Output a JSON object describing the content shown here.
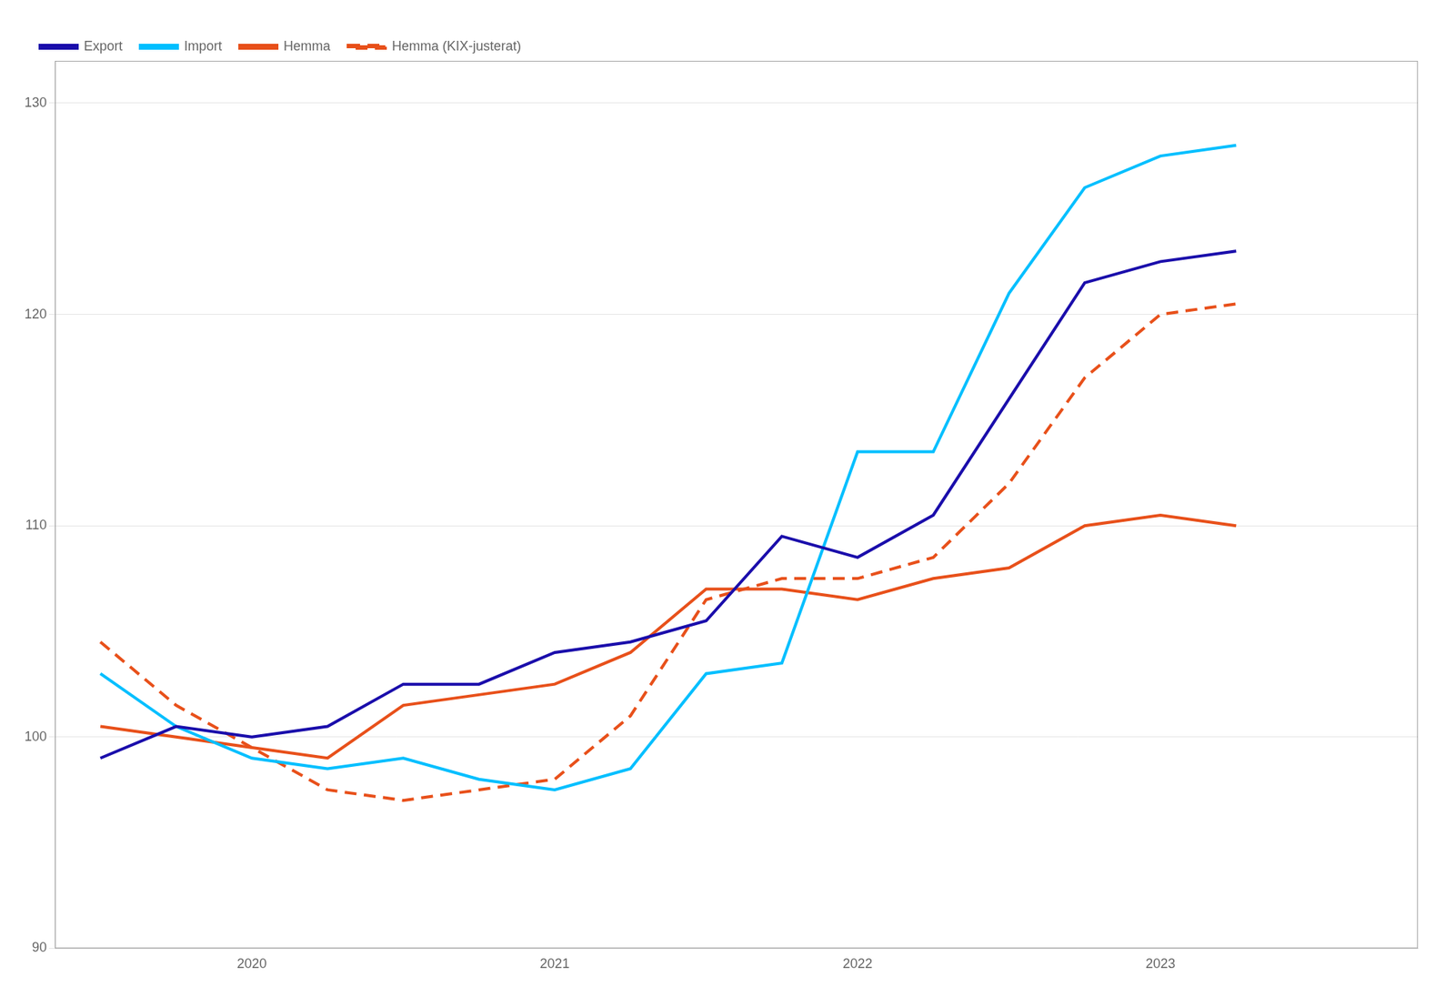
{
  "chart_data": {
    "type": "line",
    "x": [
      2019.5,
      2019.75,
      2020,
      2020.25,
      2020.5,
      2020.75,
      2021,
      2021.25,
      2021.5,
      2021.75,
      2022,
      2022.25,
      2022.5,
      2022.75,
      2023,
      2023.25
    ],
    "series": [
      {
        "name": "Export",
        "color": "#1a0dab",
        "line_style": "solid",
        "values": [
          99.0,
          100.5,
          100.0,
          100.5,
          102.5,
          102.5,
          104.0,
          104.5,
          105.5,
          109.5,
          108.5,
          110.5,
          116.0,
          121.5,
          122.5,
          123.0
        ]
      },
      {
        "name": "Import",
        "color": "#00bfff",
        "line_style": "solid",
        "values": [
          103.0,
          100.5,
          99.0,
          98.5,
          99.0,
          98.0,
          97.5,
          98.5,
          103.0,
          103.5,
          113.5,
          113.5,
          121.0,
          126.0,
          127.5,
          128.0
        ]
      },
      {
        "name": "Hemma",
        "color": "#e8501a",
        "line_style": "solid",
        "values": [
          100.5,
          100.0,
          99.5,
          99.0,
          101.5,
          102.0,
          102.5,
          104.0,
          107.0,
          107.0,
          106.5,
          107.5,
          108.0,
          110.0,
          110.5,
          110.0
        ]
      },
      {
        "name": "Hemma (KIX-justerat)",
        "color": "#e8501a",
        "line_style": "dashed",
        "values": [
          104.5,
          101.5,
          99.5,
          97.5,
          97.0,
          97.5,
          98.0,
          101.0,
          106.5,
          107.5,
          107.5,
          108.5,
          112.0,
          117.0,
          120.0,
          120.5
        ]
      }
    ],
    "xlim": [
      2019.35,
      2023.85
    ],
    "xticks": [
      2020,
      2021,
      2022,
      2023
    ],
    "ylim": [
      90,
      132
    ],
    "yticks": [
      90,
      100,
      110,
      120,
      130
    ],
    "grid": true,
    "legend": "upper left"
  }
}
